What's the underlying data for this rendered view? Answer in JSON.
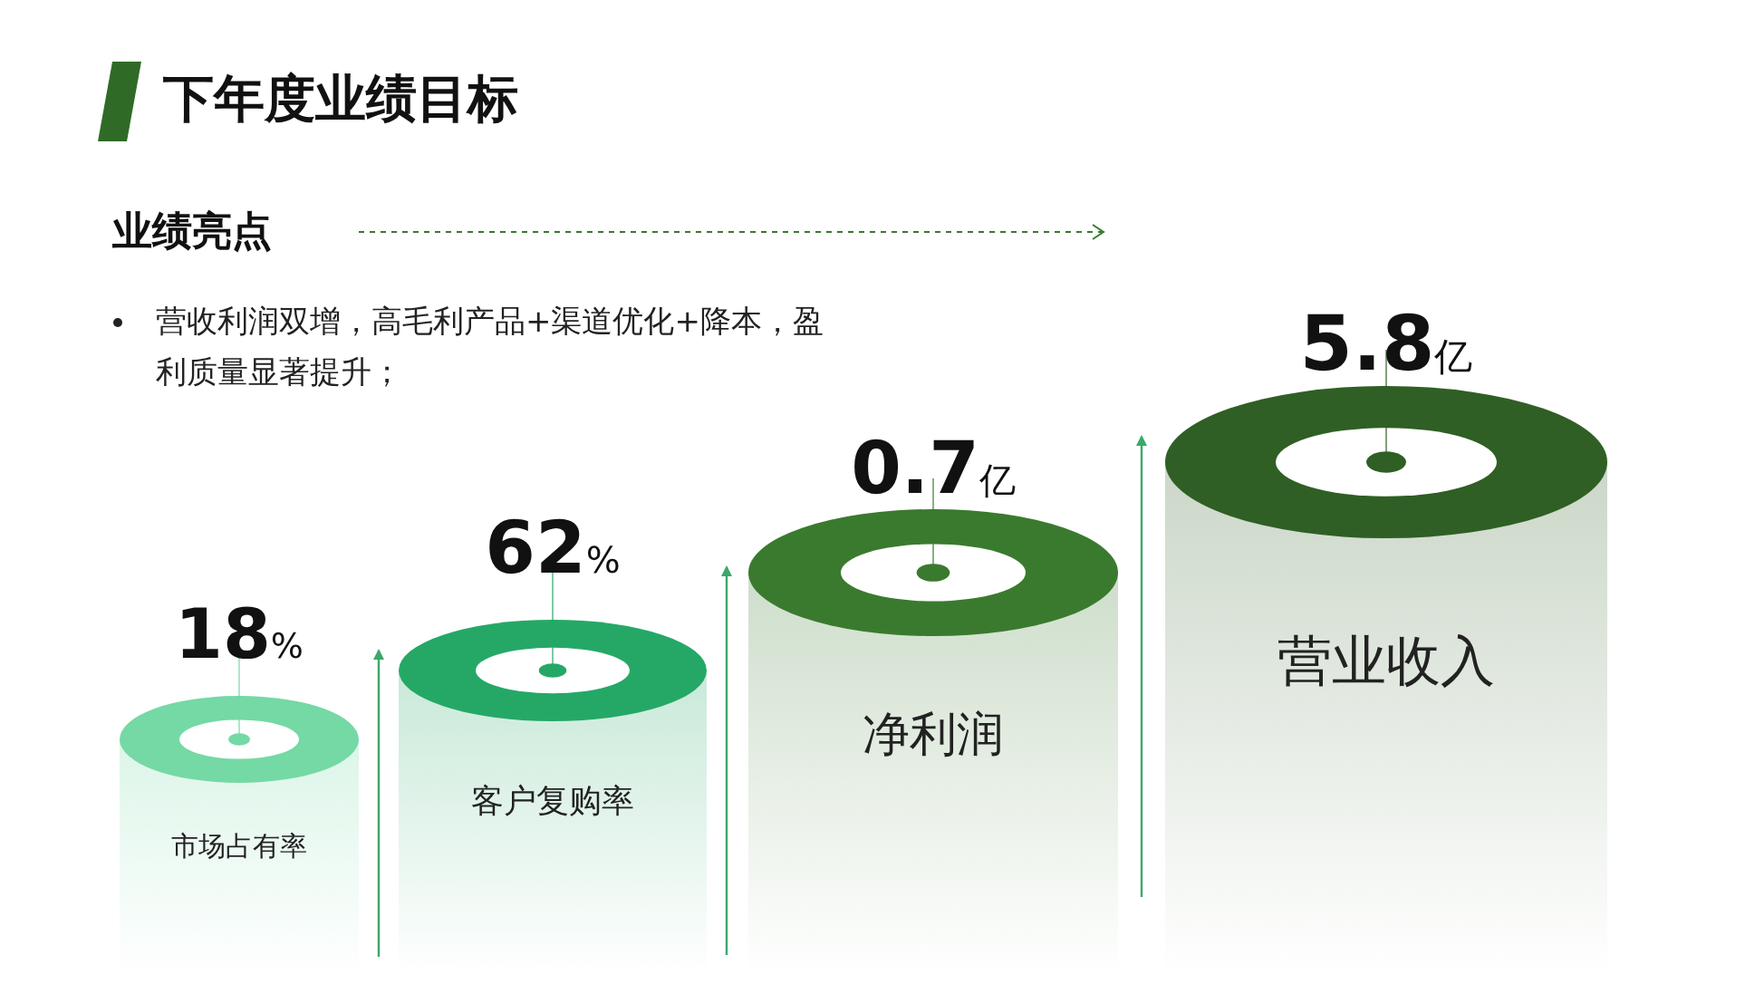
{
  "chart_data": {
    "type": "other",
    "title": "下年度业绩目标",
    "subtitle": "业绩亮点",
    "annotations": [
      "营收利润双增，高毛利产品+渠道优化+降本，盈利质量显著提升；"
    ],
    "categories": [
      "市场占有率",
      "客户复购率",
      "净利润",
      "营业收入"
    ],
    "values": [
      18,
      62,
      0.7,
      5.8
    ],
    "value_labels": [
      "18%",
      "62%",
      "0.7亿",
      "5.8亿"
    ],
    "colors": [
      "#74d9a4",
      "#25a866",
      "#3a7a2e",
      "#2f5f24"
    ]
  }
}
